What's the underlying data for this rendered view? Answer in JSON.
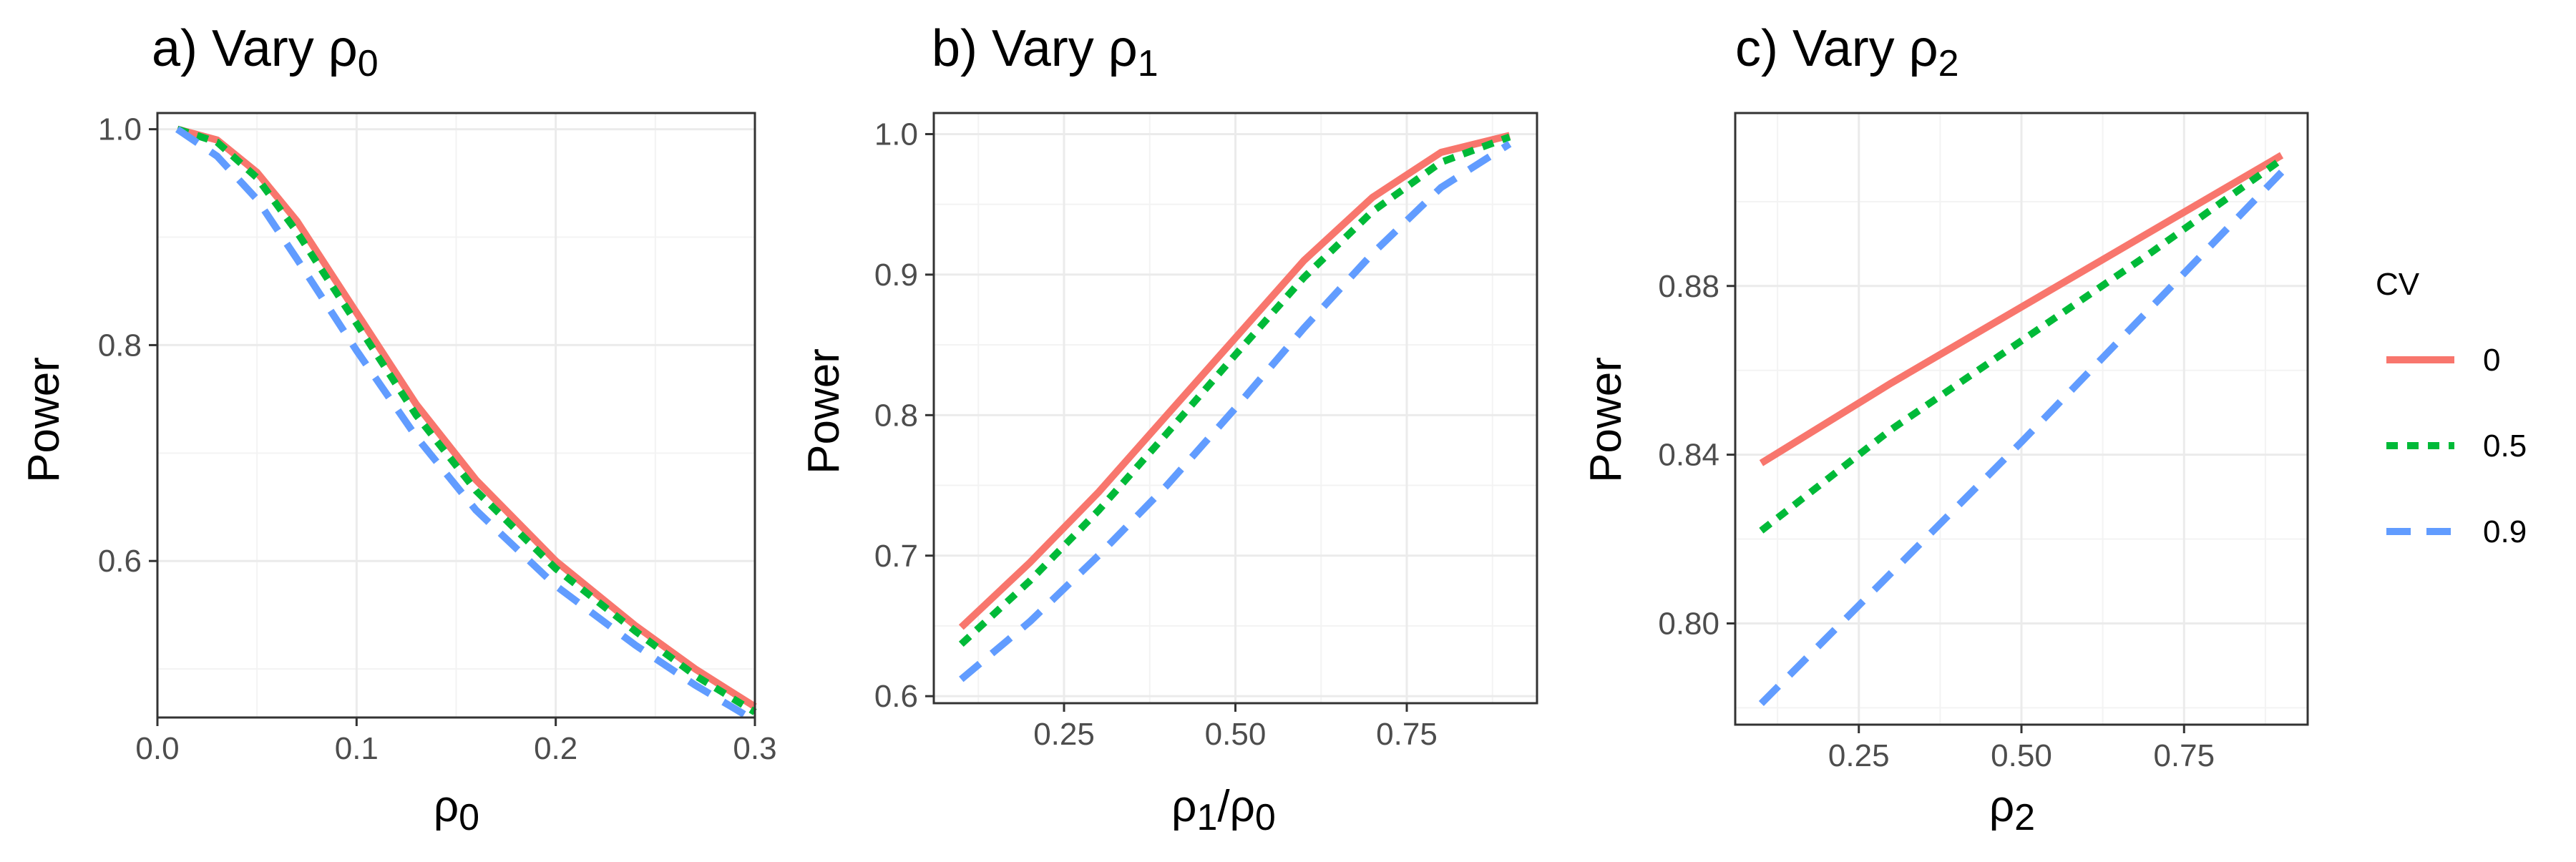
{
  "colors": {
    "cv0": "#F8766D",
    "cv05": "#00BA38",
    "cv09": "#619CFF"
  },
  "legend": {
    "title": "CV",
    "entries": [
      {
        "label": "0",
        "color": "#F8766D",
        "dash": "solid"
      },
      {
        "label": "0.5",
        "color": "#00BA38",
        "dash": "dotted"
      },
      {
        "label": "0.9",
        "color": "#619CFF",
        "dash": "dashed"
      }
    ]
  },
  "chart_data": [
    {
      "type": "line",
      "title": {
        "prefix": "a) Vary ρ",
        "sub": "0"
      },
      "xlabel": {
        "main": "ρ",
        "sub": "0"
      },
      "ylabel": "Power",
      "xlim": [
        0.0,
        0.3
      ],
      "ylim": [
        0.455,
        1.015
      ],
      "xticks": [
        0.0,
        0.1,
        0.2,
        0.3
      ],
      "xtick_labels": [
        "0.0",
        "0.1",
        "0.2",
        "0.3"
      ],
      "yticks": [
        0.6,
        0.8,
        1.0
      ],
      "ytick_labels": [
        "0.6",
        "0.8",
        "1.0"
      ],
      "series": [
        {
          "name": "0",
          "x": [
            0.01,
            0.03,
            0.05,
            0.07,
            0.1,
            0.13,
            0.16,
            0.2,
            0.24,
            0.27,
            0.3
          ],
          "y": [
            1.0,
            0.99,
            0.96,
            0.915,
            0.83,
            0.745,
            0.675,
            0.6,
            0.54,
            0.5,
            0.465
          ]
        },
        {
          "name": "0.5",
          "x": [
            0.01,
            0.03,
            0.05,
            0.07,
            0.1,
            0.13,
            0.16,
            0.2,
            0.24,
            0.27,
            0.3
          ],
          "y": [
            1.0,
            0.988,
            0.955,
            0.905,
            0.82,
            0.735,
            0.665,
            0.593,
            0.535,
            0.494,
            0.46
          ]
        },
        {
          "name": "0.9",
          "x": [
            0.01,
            0.03,
            0.05,
            0.07,
            0.1,
            0.13,
            0.16,
            0.2,
            0.24,
            0.27,
            0.3
          ],
          "y": [
            1.0,
            0.975,
            0.935,
            0.88,
            0.795,
            0.715,
            0.647,
            0.577,
            0.522,
            0.485,
            0.452
          ]
        }
      ]
    },
    {
      "type": "line",
      "title": {
        "prefix": "b) Vary ρ",
        "sub": "1"
      },
      "xlabel": {
        "main": "ρ",
        "sub": "1",
        "main2": "ρ",
        "sub2": "0"
      },
      "ylabel": "Power",
      "xlim": [
        0.06,
        0.94
      ],
      "ylim": [
        0.595,
        1.015
      ],
      "xticks": [
        0.25,
        0.5,
        0.75
      ],
      "xtick_labels": [
        "0.25",
        "0.50",
        "0.75"
      ],
      "yticks": [
        0.6,
        0.7,
        0.8,
        0.9,
        1.0
      ],
      "ytick_labels": [
        "0.6",
        "0.7",
        "0.8",
        "0.9",
        "1.0"
      ],
      "series": [
        {
          "name": "0",
          "x": [
            0.1,
            0.2,
            0.3,
            0.4,
            0.5,
            0.6,
            0.7,
            0.8,
            0.9
          ],
          "y": [
            0.649,
            0.695,
            0.745,
            0.8,
            0.855,
            0.91,
            0.955,
            0.987,
            0.999
          ]
        },
        {
          "name": "0.5",
          "x": [
            0.1,
            0.2,
            0.3,
            0.4,
            0.5,
            0.6,
            0.7,
            0.8,
            0.9
          ],
          "y": [
            0.637,
            0.682,
            0.732,
            0.787,
            0.843,
            0.898,
            0.945,
            0.98,
            0.998
          ]
        },
        {
          "name": "0.9",
          "x": [
            0.1,
            0.2,
            0.3,
            0.4,
            0.5,
            0.6,
            0.7,
            0.8,
            0.9
          ],
          "y": [
            0.612,
            0.653,
            0.7,
            0.75,
            0.805,
            0.862,
            0.915,
            0.962,
            0.993
          ]
        }
      ]
    },
    {
      "type": "line",
      "title": {
        "prefix": "c) Vary ρ",
        "sub": "2"
      },
      "xlabel": {
        "main": "ρ",
        "sub": "2"
      },
      "ylabel": "Power",
      "xlim": [
        0.06,
        0.94
      ],
      "ylim": [
        0.776,
        0.921
      ],
      "xticks": [
        0.25,
        0.5,
        0.75
      ],
      "xtick_labels": [
        "0.25",
        "0.50",
        "0.75"
      ],
      "yticks": [
        0.8,
        0.84,
        0.88
      ],
      "ytick_labels": [
        "0.80",
        "0.84",
        "0.88"
      ],
      "series": [
        {
          "name": "0",
          "x": [
            0.1,
            0.3,
            0.5,
            0.7,
            0.9
          ],
          "y": [
            0.838,
            0.857,
            0.875,
            0.893,
            0.911
          ]
        },
        {
          "name": "0.5",
          "x": [
            0.1,
            0.3,
            0.5,
            0.7,
            0.9
          ],
          "y": [
            0.822,
            0.846,
            0.867,
            0.888,
            0.91
          ]
        },
        {
          "name": "0.9",
          "x": [
            0.1,
            0.3,
            0.5,
            0.7,
            0.9
          ],
          "y": [
            0.781,
            0.812,
            0.843,
            0.875,
            0.907
          ]
        }
      ]
    }
  ]
}
